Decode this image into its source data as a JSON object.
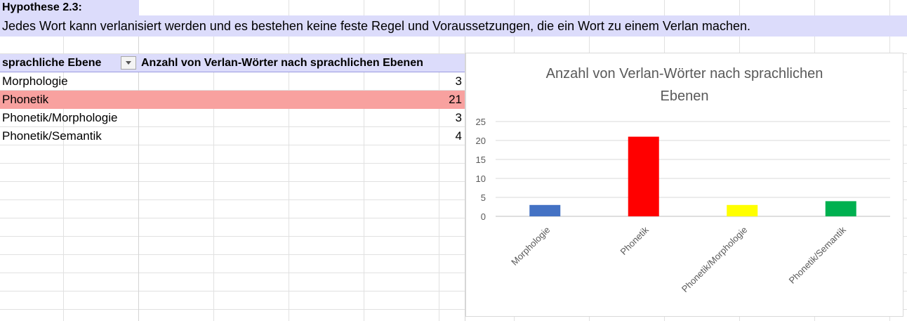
{
  "hypothesis": {
    "title": "Hypothese 2.3:",
    "text": "Jedes Wort kann verlanisiert werden und es bestehen keine feste Regel und Voraussetzungen, die ein Wort zu einem Verlan machen."
  },
  "table": {
    "headers": [
      "sprachliche Ebene",
      "Anzahl von Verlan-Wörter nach sprachlichen Ebenen"
    ],
    "rows": [
      {
        "label": "Morphologie",
        "value": "3"
      },
      {
        "label": "Phonetik",
        "value": "21"
      },
      {
        "label": "Phonetik/Morphologie",
        "value": "3"
      },
      {
        "label": "Phonetik/Semantik",
        "value": "4"
      }
    ],
    "highlight_color": "#f8a19f",
    "header_color": "#dcdcfb"
  },
  "chart_data": {
    "type": "bar",
    "title": "Anzahl von Verlan-Wörter nach sprachlichen Ebenen",
    "title_lines": [
      "Anzahl von Verlan-Wörter nach sprachlichen",
      "Ebenen"
    ],
    "categories": [
      "Morphologie",
      "Phonetik",
      "Phonetik/Morphologie",
      "Phonetik/Semantik"
    ],
    "values": [
      3,
      21,
      3,
      4
    ],
    "colors": [
      "#4472c4",
      "#ff0000",
      "#ffff00",
      "#00b050"
    ],
    "ylim": [
      0,
      25
    ],
    "yticks": [
      0,
      5,
      10,
      15,
      20,
      25
    ],
    "grid": true,
    "legend": "none",
    "xlabel": "",
    "ylabel": ""
  }
}
